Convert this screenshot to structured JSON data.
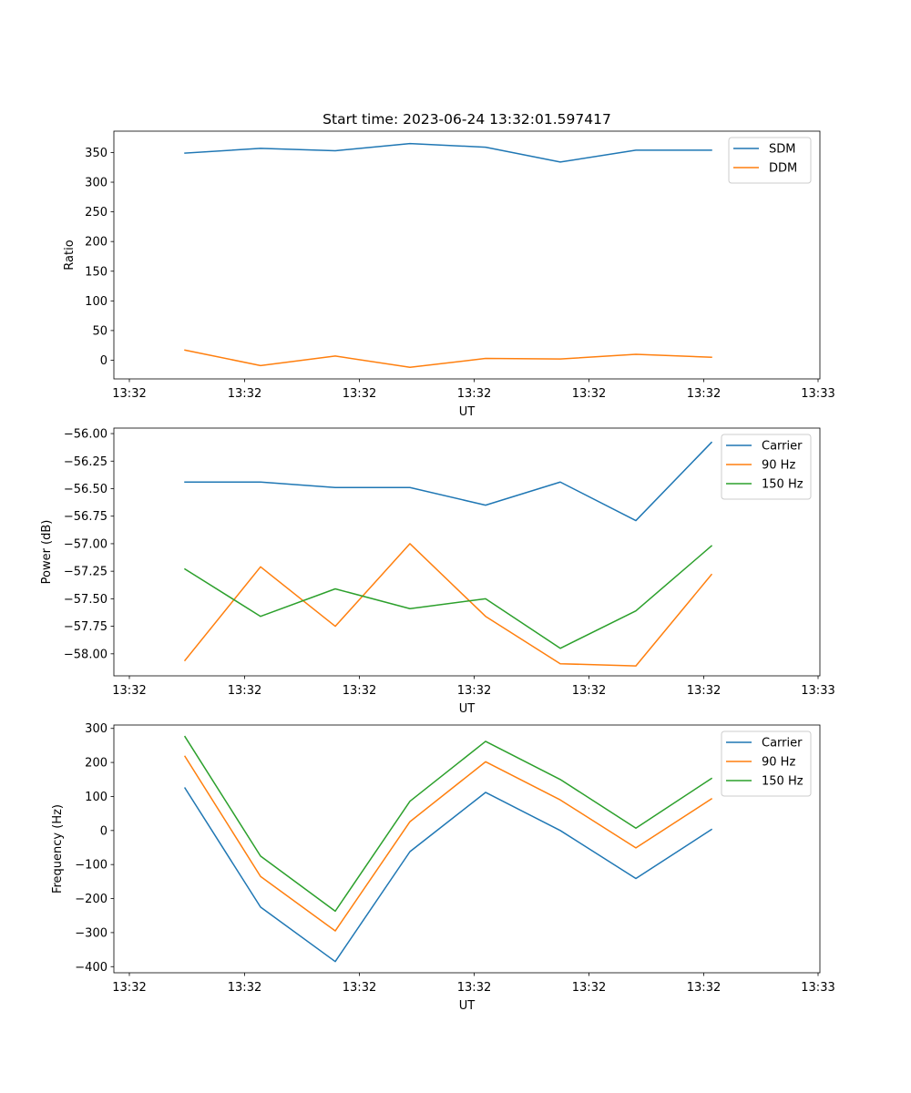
{
  "title": "Start time: 2023-06-24 13:32:01.597417",
  "x_tick_labels": [
    "13:32",
    "13:32",
    "13:32",
    "13:32",
    "13:32",
    "13:32",
    "13:33"
  ],
  "chart_data": [
    {
      "type": "line",
      "title": "Start time: 2023-06-24 13:32:01.597417",
      "xlabel": "UT",
      "ylabel": "Ratio",
      "ylim": [
        -31.5,
        386
      ],
      "yticks": [
        0,
        50,
        100,
        150,
        200,
        250,
        300,
        350
      ],
      "ytick_labels": [
        "0",
        "50",
        "100",
        "150",
        "200",
        "250",
        "300",
        "350"
      ],
      "legend_position": "top-right",
      "grid": false,
      "series": [
        {
          "name": "SDM",
          "color": "#1f77b4",
          "values": [
            349,
            357,
            353,
            365,
            359,
            334,
            354,
            354
          ]
        },
        {
          "name": "DDM",
          "color": "#ff7f0e",
          "values": [
            17,
            -9,
            7,
            -12,
            3,
            2,
            10,
            5
          ]
        }
      ]
    },
    {
      "type": "line",
      "xlabel": "UT",
      "ylabel": "Power (dB)",
      "ylim": [
        -58.2,
        -55.95
      ],
      "yticks": [
        -58.0,
        -57.75,
        -57.5,
        -57.25,
        -57.0,
        -56.75,
        -56.5,
        -56.25,
        -56.0
      ],
      "ytick_labels": [
        "−58.00",
        "−57.75",
        "−57.50",
        "−57.25",
        "−57.00",
        "−56.75",
        "−56.50",
        "−56.25",
        "−56.00"
      ],
      "legend_position": "top-right",
      "grid": false,
      "series": [
        {
          "name": "Carrier",
          "color": "#1f77b4",
          "values": [
            -56.44,
            -56.44,
            -56.49,
            -56.49,
            -56.65,
            -56.44,
            -56.79,
            -56.08
          ]
        },
        {
          "name": "90 Hz",
          "color": "#ff7f0e",
          "values": [
            -58.06,
            -57.21,
            -57.75,
            -57.0,
            -57.66,
            -58.09,
            -58.11,
            -57.28
          ]
        },
        {
          "name": "150 Hz",
          "color": "#2ca02c",
          "values": [
            -57.23,
            -57.66,
            -57.41,
            -57.59,
            -57.5,
            -57.95,
            -57.61,
            -57.02
          ]
        }
      ]
    },
    {
      "type": "line",
      "xlabel": "UT",
      "ylabel": "Frequency (Hz)",
      "ylim": [
        -418,
        310
      ],
      "yticks": [
        -400,
        -300,
        -200,
        -100,
        0,
        100,
        200,
        300
      ],
      "ytick_labels": [
        "−400",
        "−300",
        "−200",
        "−100",
        "0",
        "100",
        "200",
        "300"
      ],
      "legend_position": "top-right",
      "grid": false,
      "series": [
        {
          "name": "Carrier",
          "color": "#1f77b4",
          "values": [
            125,
            -225,
            -385,
            -62,
            112,
            0,
            -141,
            3
          ]
        },
        {
          "name": "90 Hz",
          "color": "#ff7f0e",
          "values": [
            218,
            -135,
            -295,
            26,
            202,
            90,
            -51,
            93
          ]
        },
        {
          "name": "150 Hz",
          "color": "#2ca02c",
          "values": [
            276,
            -75,
            -237,
            86,
            262,
            150,
            7,
            153
          ]
        }
      ]
    }
  ]
}
